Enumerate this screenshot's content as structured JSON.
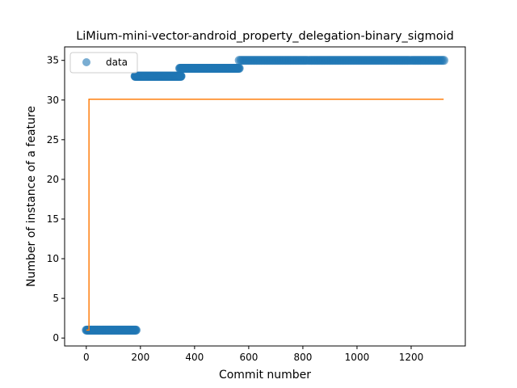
{
  "chart_data": {
    "type": "scatter",
    "title": "LiMium-mini-vector-android_property_delegation-binary_sigmoid",
    "xlabel": "Commit number",
    "ylabel": "Number of instance of a feature",
    "xlim": [
      -80,
      1400
    ],
    "ylim": [
      -1,
      36.7
    ],
    "xticks": [
      0,
      200,
      400,
      600,
      800,
      1000,
      1200
    ],
    "yticks": [
      0,
      5,
      10,
      15,
      20,
      25,
      30,
      35
    ],
    "legend": {
      "placement": "top-left",
      "entries": [
        "data"
      ]
    },
    "grid": false,
    "colors": {
      "data": "#1f77b4",
      "fit": "#ff7f0e"
    },
    "series": [
      {
        "name": "data",
        "kind": "scatter",
        "segments": [
          {
            "x_start": 0,
            "x_end": 185,
            "y": 1
          },
          {
            "x_start": 180,
            "x_end": 350,
            "y": 33
          },
          {
            "x_start": 345,
            "x_end": 565,
            "y": 34
          },
          {
            "x_start": 565,
            "x_end": 1325,
            "y": 35
          }
        ]
      },
      {
        "kind": "line",
        "points": [
          [
            0,
            1
          ],
          [
            10,
            1
          ],
          [
            10,
            30.1
          ],
          [
            1320,
            30.1
          ]
        ]
      }
    ]
  }
}
